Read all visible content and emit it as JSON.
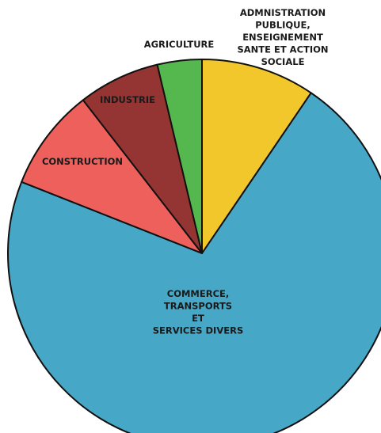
{
  "chart_data": {
    "type": "pie",
    "start": "12 o'clock",
    "direction": "clockwise",
    "slices": [
      {
        "label": [
          "ADMNISTRATION",
          "PUBLIQUE,",
          "ENSEIGNEMENT",
          "SANTE ET ACTION",
          "SOCIALE"
        ],
        "value": 9.5,
        "color": "#f2c72b"
      },
      {
        "label": [
          "COMMERCE,",
          "TRANSPORTS",
          "ET",
          "SERVICES DIVERS"
        ],
        "value": 71.5,
        "color": "#47a7c7"
      },
      {
        "label": [
          "CONSTRUCTION"
        ],
        "value": 8.5,
        "color": "#ee605c"
      },
      {
        "label": [
          "INDUSTRIE"
        ],
        "value": 6.8,
        "color": "#953533"
      },
      {
        "label": [
          "AGRICULTURE"
        ],
        "value": 3.7,
        "color": "#55b84f"
      }
    ]
  }
}
